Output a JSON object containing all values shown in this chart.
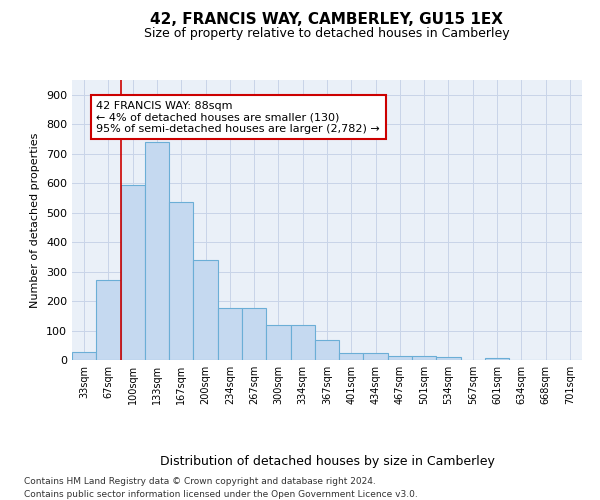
{
  "title1": "42, FRANCIS WAY, CAMBERLEY, GU15 1EX",
  "title2": "Size of property relative to detached houses in Camberley",
  "xlabel": "Distribution of detached houses by size in Camberley",
  "ylabel": "Number of detached properties",
  "categories": [
    "33sqm",
    "67sqm",
    "100sqm",
    "133sqm",
    "167sqm",
    "200sqm",
    "234sqm",
    "267sqm",
    "300sqm",
    "334sqm",
    "367sqm",
    "401sqm",
    "434sqm",
    "467sqm",
    "501sqm",
    "534sqm",
    "567sqm",
    "601sqm",
    "634sqm",
    "668sqm",
    "701sqm"
  ],
  "values": [
    27,
    270,
    595,
    740,
    535,
    338,
    178,
    178,
    120,
    120,
    68,
    25,
    25,
    15,
    12,
    10,
    0,
    8,
    0,
    0,
    0
  ],
  "bar_color": "#c5d9f0",
  "bar_edge_color": "#6baed6",
  "grid_color": "#c8d4e8",
  "bg_color": "#eaf0f8",
  "red_line_index": 2,
  "annotation_text": "42 FRANCIS WAY: 88sqm\n← 4% of detached houses are smaller (130)\n95% of semi-detached houses are larger (2,782) →",
  "annotation_box_color": "#ffffff",
  "annotation_border_color": "#cc0000",
  "ylim": [
    0,
    950
  ],
  "yticks": [
    0,
    100,
    200,
    300,
    400,
    500,
    600,
    700,
    800,
    900
  ],
  "footer1": "Contains HM Land Registry data © Crown copyright and database right 2024.",
  "footer2": "Contains public sector information licensed under the Open Government Licence v3.0."
}
